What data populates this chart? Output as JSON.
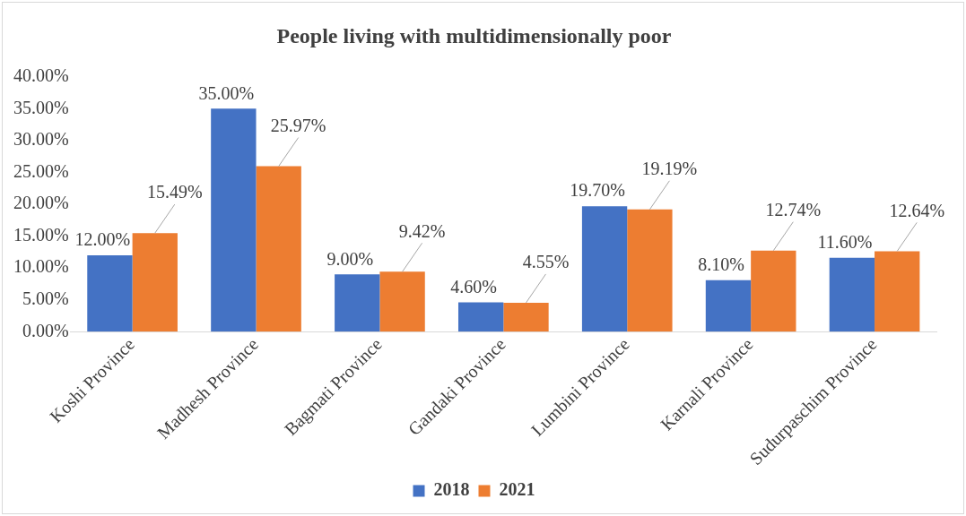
{
  "chart_data": {
    "type": "bar",
    "title": "People living with multidimensionally poor",
    "categories": [
      "Koshi Province",
      "Madhesh Province",
      "Bagmati Province",
      "Gandaki Province",
      "Lumbini Province",
      "Karnali Province",
      "Sudurpaschim Province"
    ],
    "series": [
      {
        "name": "2018",
        "color": "#4472c4",
        "values": [
          12,
          35,
          9,
          4.6,
          19.7,
          8.1,
          11.6
        ],
        "value_labels": [
          "12.00%",
          "35.00%",
          "9.00%",
          "4.60%",
          "19.70%",
          "8.10%",
          "11.60%"
        ]
      },
      {
        "name": "2021",
        "color": "#ed7d31",
        "values": [
          15.49,
          25.97,
          9.42,
          4.55,
          19.19,
          12.74,
          12.64
        ],
        "value_labels": [
          "15.49%",
          "25.97%",
          "9.42%",
          "4.55%",
          "19.19%",
          "12.74%",
          "12.64%"
        ]
      }
    ],
    "ylim": [
      0,
      40
    ],
    "yticks": [
      {
        "value": 0,
        "label": "0.00%"
      },
      {
        "value": 5,
        "label": "5.00%"
      },
      {
        "value": 10,
        "label": "10.00%"
      },
      {
        "value": 15,
        "label": "15.00%"
      },
      {
        "value": 20,
        "label": "20.00%"
      },
      {
        "value": 25,
        "label": "25.00%"
      },
      {
        "value": 30,
        "label": "30.00%"
      },
      {
        "value": 35,
        "label": "35.00%"
      },
      {
        "value": 40,
        "label": "40.00%"
      }
    ],
    "grid": false,
    "legend": "bottom"
  }
}
